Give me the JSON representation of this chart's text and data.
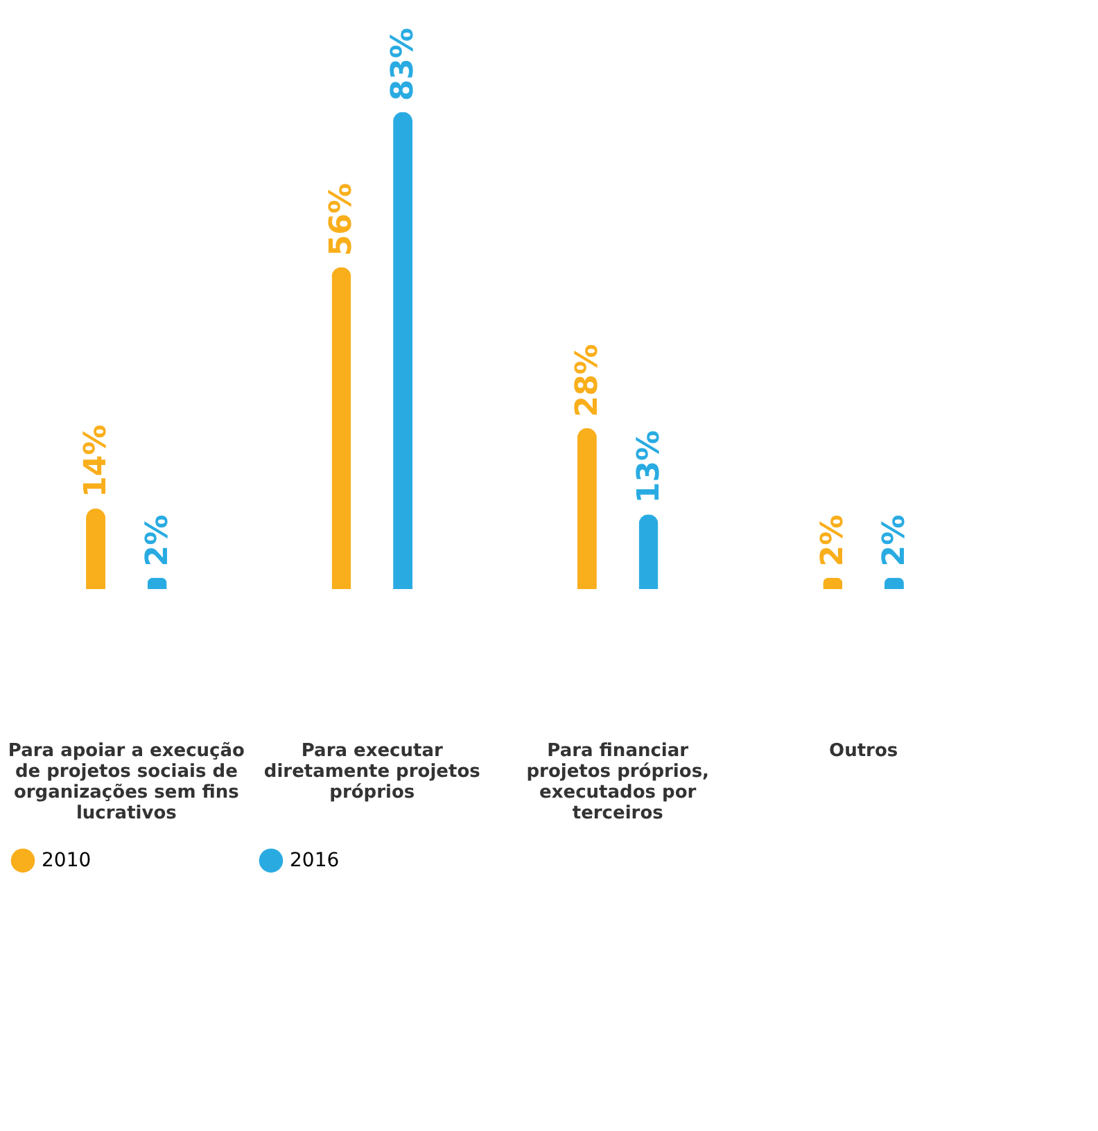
{
  "chart_data": {
    "type": "bar",
    "categories": [
      "Para apoiar a execução de projetos sociais de organizações sem fins lucrativos",
      "Para executar diretamente projetos próprios",
      "Para financiar projetos próprios, executados por terceiros",
      "Outros"
    ],
    "series": [
      {
        "name": "2010",
        "color": "#f9ae1b",
        "values": [
          14,
          56,
          28,
          2
        ],
        "value_labels": [
          "14%",
          "56%",
          "28%",
          "2%"
        ]
      },
      {
        "name": "2016",
        "color": "#29abe2",
        "values": [
          2,
          83,
          13,
          2
        ],
        "value_labels": [
          "2%",
          "83%",
          "13%",
          "2%"
        ]
      }
    ],
    "grid": false,
    "legend": "bottom"
  }
}
